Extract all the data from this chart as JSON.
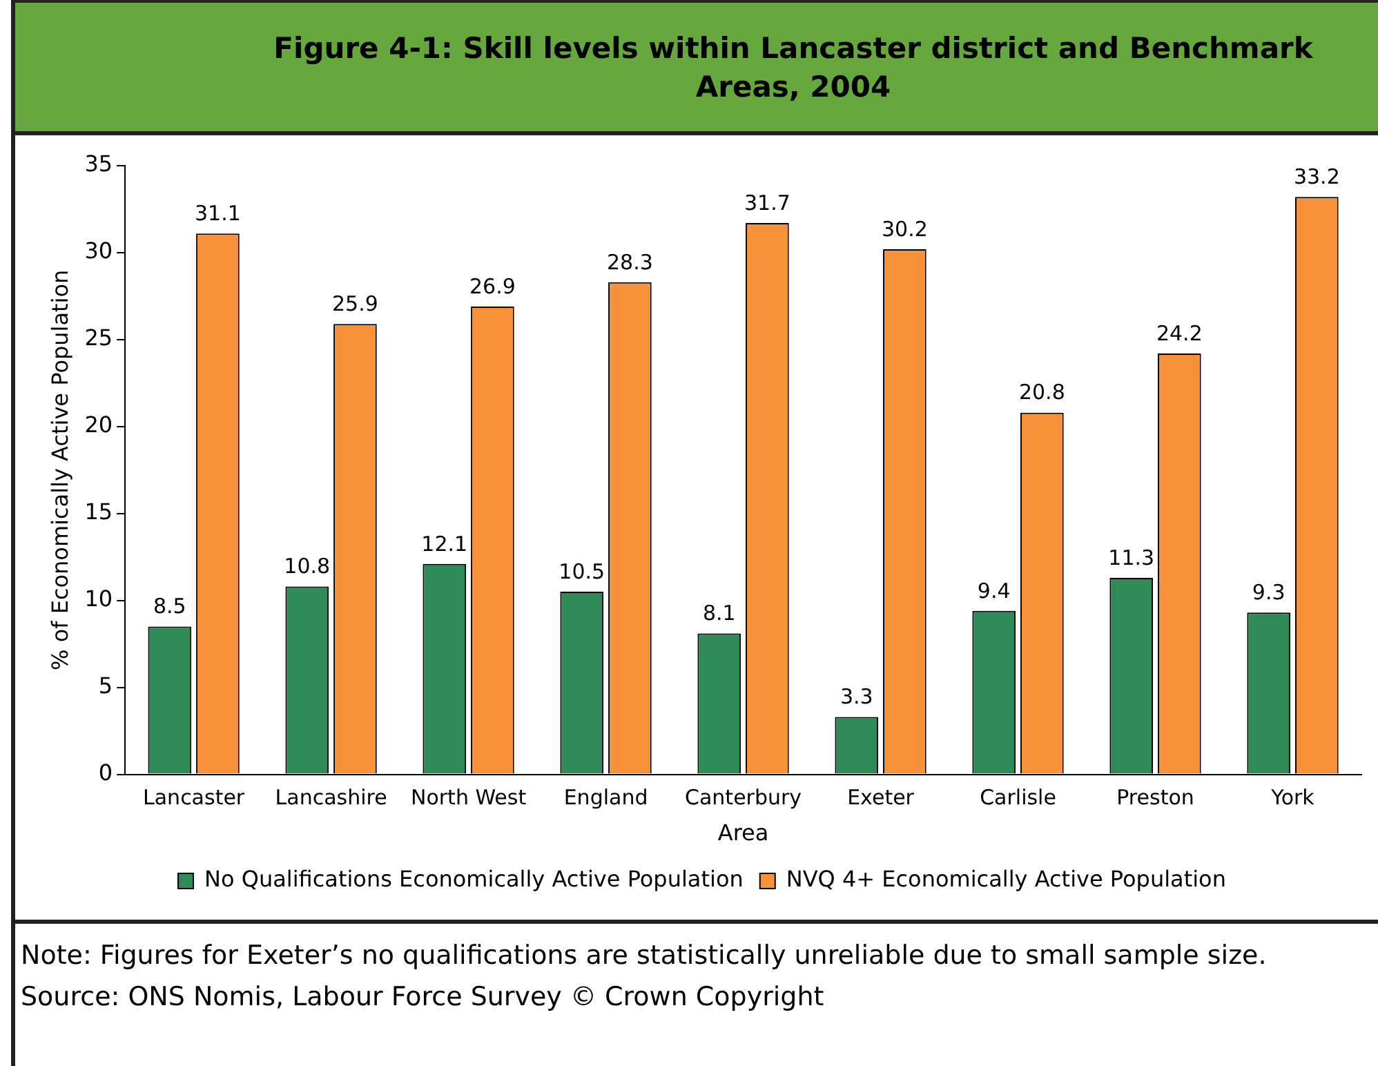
{
  "chart_data": {
    "type": "bar",
    "title": "Figure 4-1: Skill levels within Lancaster district and Benchmark Areas, 2004",
    "xlabel": "Area",
    "ylabel": "% of Economically Active Population",
    "categories": [
      "Lancaster",
      "Lancashire",
      "North West",
      "England",
      "Canterbury",
      "Exeter",
      "Carlisle",
      "Preston",
      "York"
    ],
    "series": [
      {
        "name": "No Qualifications Economically Active Population",
        "color": "#2e8b57",
        "values": [
          8.5,
          10.8,
          12.1,
          10.5,
          8.1,
          3.3,
          9.4,
          11.3,
          9.3
        ]
      },
      {
        "name": "NVQ 4+ Economically Active Population",
        "color": "#f7923a",
        "values": [
          31.1,
          25.9,
          26.9,
          28.3,
          31.7,
          30.2,
          20.8,
          24.2,
          33.2
        ]
      }
    ],
    "ylim": [
      0,
      35
    ],
    "yticks": [
      0,
      5,
      10,
      15,
      20,
      25,
      30,
      35
    ],
    "grid": false,
    "legend": "bottom",
    "data_labels": true,
    "annotations": [
      "Note: Figures for Exeter’s no qualifications are statistically unreliable due to small sample size.",
      "Source: ONS Nomis, Labour Force Survey © Crown Copyright"
    ]
  }
}
